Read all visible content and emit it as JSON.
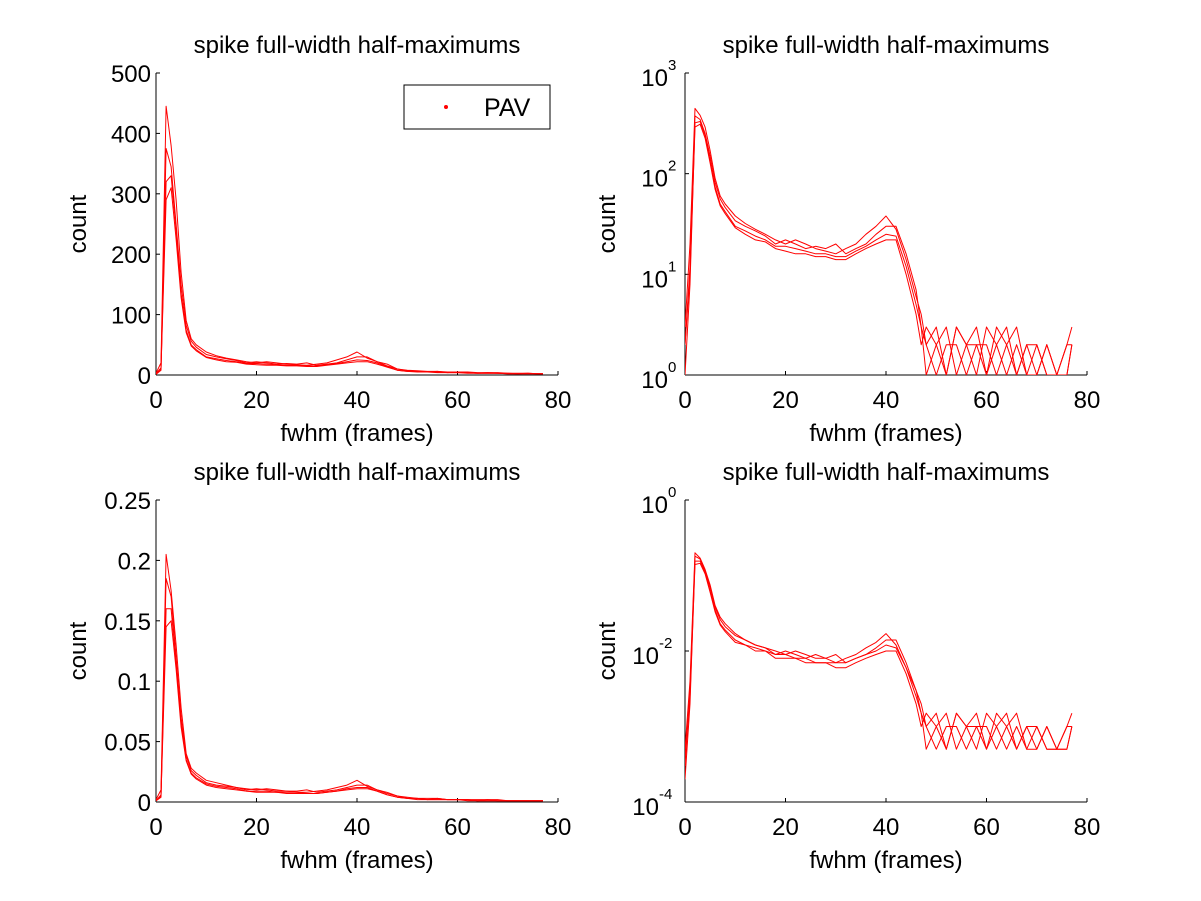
{
  "colors": {
    "series": "#ff0000",
    "axis": "#000000",
    "background": "#ffffff"
  },
  "chart_data": [
    {
      "type": "line",
      "panel": "top-left",
      "title": "spike full-width half-maximums",
      "xlabel": "fwhm (frames)",
      "ylabel": "count",
      "xlim": [
        0,
        80
      ],
      "ylim": [
        0,
        500
      ],
      "yscale": "linear",
      "xticks": [
        0,
        20,
        40,
        60,
        80
      ],
      "xtick_labels": [
        "0",
        "20",
        "40",
        "60",
        "80"
      ],
      "yticks": [
        0,
        100,
        200,
        300,
        400,
        500
      ],
      "ytick_labels": [
        "0",
        "100",
        "200",
        "300",
        "400",
        "500"
      ],
      "grid": false,
      "legend": {
        "entries": [
          "PAV"
        ],
        "placement": "top-right",
        "marker": "dot"
      },
      "x": [
        0,
        1,
        2,
        3,
        4,
        5,
        6,
        7,
        8,
        10,
        12,
        14,
        16,
        18,
        20,
        22,
        24,
        26,
        28,
        30,
        32,
        34,
        36,
        38,
        40,
        42,
        44,
        46,
        48,
        50,
        52,
        54,
        56,
        58,
        60,
        62,
        64,
        66,
        68,
        70,
        72,
        74,
        76,
        77
      ],
      "series": [
        {
          "values": [
            3,
            20,
            445,
            380,
            290,
            170,
            90,
            60,
            50,
            38,
            32,
            28,
            25,
            22,
            20,
            22,
            20,
            18,
            17,
            16,
            18,
            20,
            25,
            30,
            38,
            28,
            22,
            18,
            10,
            8,
            7,
            6,
            6,
            5,
            5,
            5,
            4,
            4,
            4,
            3,
            3,
            3,
            2,
            2
          ]
        },
        {
          "values": [
            2,
            12,
            375,
            345,
            250,
            150,
            82,
            56,
            46,
            34,
            30,
            27,
            24,
            20,
            22,
            20,
            18,
            19,
            18,
            20,
            16,
            18,
            20,
            25,
            30,
            30,
            22,
            15,
            10,
            7,
            6,
            5,
            6,
            4,
            5,
            4,
            3,
            4,
            3,
            3,
            2,
            3,
            2,
            2
          ]
        },
        {
          "values": [
            1,
            8,
            320,
            330,
            240,
            135,
            74,
            50,
            42,
            30,
            27,
            24,
            22,
            19,
            19,
            18,
            17,
            16,
            16,
            15,
            15,
            17,
            19,
            22,
            25,
            24,
            20,
            14,
            8,
            6,
            6,
            5,
            5,
            4,
            4,
            4,
            3,
            3,
            3,
            2,
            2,
            2,
            2,
            2
          ]
        },
        {
          "values": [
            2,
            10,
            290,
            310,
            225,
            128,
            70,
            48,
            40,
            29,
            25,
            22,
            21,
            18,
            17,
            16,
            16,
            15,
            15,
            14,
            14,
            16,
            18,
            20,
            22,
            22,
            18,
            13,
            8,
            6,
            5,
            5,
            4,
            4,
            4,
            3,
            3,
            3,
            3,
            2,
            2,
            2,
            2,
            2
          ]
        }
      ]
    },
    {
      "type": "line",
      "panel": "top-right",
      "title": "spike full-width half-maximums",
      "xlabel": "fwhm (frames)",
      "ylabel": "count",
      "xlim": [
        0,
        80
      ],
      "ylim": [
        1,
        1000
      ],
      "yscale": "log",
      "xticks": [
        0,
        20,
        40,
        60,
        80
      ],
      "xtick_labels": [
        "0",
        "20",
        "40",
        "60",
        "80"
      ],
      "yticks": [
        1,
        10,
        100,
        1000
      ],
      "ytick_labels": [
        {
          "base": "10",
          "exp": "0"
        },
        {
          "base": "10",
          "exp": "1"
        },
        {
          "base": "10",
          "exp": "2"
        },
        {
          "base": "10",
          "exp": "3"
        }
      ],
      "grid": false,
      "x": [
        0,
        1,
        2,
        3,
        4,
        5,
        6,
        7,
        8,
        10,
        12,
        14,
        16,
        18,
        20,
        22,
        24,
        26,
        28,
        30,
        32,
        34,
        36,
        38,
        40,
        42,
        44,
        46,
        47,
        48,
        50,
        52,
        54,
        56,
        58,
        60,
        62,
        64,
        66,
        68,
        70,
        72,
        74,
        76,
        77
      ],
      "series": [
        {
          "values": [
            3,
            20,
            445,
            380,
            290,
            170,
            90,
            60,
            50,
            38,
            32,
            28,
            25,
            22,
            20,
            22,
            20,
            18,
            17,
            16,
            18,
            20,
            25,
            30,
            38,
            28,
            14,
            6,
            4,
            2,
            3,
            1,
            3,
            2,
            1,
            3,
            2,
            1,
            2,
            1,
            2,
            1,
            1,
            2,
            3
          ]
        },
        {
          "values": [
            2,
            12,
            375,
            345,
            250,
            150,
            82,
            56,
            46,
            34,
            30,
            27,
            24,
            20,
            22,
            20,
            18,
            19,
            18,
            20,
            16,
            18,
            20,
            25,
            30,
            30,
            16,
            7,
            3,
            1,
            2,
            3,
            1,
            2,
            3,
            1,
            2,
            3,
            1,
            2,
            1,
            2,
            1,
            2,
            2
          ]
        },
        {
          "values": [
            1,
            8,
            320,
            330,
            240,
            135,
            74,
            50,
            42,
            30,
            27,
            24,
            22,
            19,
            19,
            18,
            17,
            16,
            16,
            15,
            15,
            17,
            19,
            22,
            25,
            24,
            12,
            5,
            3,
            2,
            1,
            2,
            2,
            1,
            2,
            2,
            1,
            2,
            3,
            1,
            1,
            2,
            1,
            1,
            2
          ]
        },
        {
          "values": [
            2,
            10,
            290,
            310,
            225,
            128,
            70,
            48,
            40,
            29,
            25,
            22,
            21,
            18,
            17,
            16,
            16,
            15,
            15,
            14,
            14,
            16,
            18,
            20,
            22,
            22,
            10,
            4,
            2,
            3,
            2,
            1,
            3,
            2,
            2,
            1,
            3,
            2,
            1,
            2,
            2,
            1,
            1,
            1,
            2
          ]
        }
      ]
    },
    {
      "type": "line",
      "panel": "bottom-left",
      "title": "spike full-width half-maximums",
      "xlabel": "fwhm (frames)",
      "ylabel": "count",
      "xlim": [
        0,
        80
      ],
      "ylim": [
        0,
        0.25
      ],
      "yscale": "linear",
      "xticks": [
        0,
        20,
        40,
        60,
        80
      ],
      "xtick_labels": [
        "0",
        "20",
        "40",
        "60",
        "80"
      ],
      "yticks": [
        0,
        0.05,
        0.1,
        0.15,
        0.2,
        0.25
      ],
      "ytick_labels": [
        "0",
        "0.05",
        "0.1",
        "0.15",
        "0.2",
        "0.25"
      ],
      "grid": false,
      "x": [
        0,
        1,
        2,
        3,
        4,
        5,
        6,
        7,
        8,
        10,
        12,
        14,
        16,
        18,
        20,
        22,
        24,
        26,
        28,
        30,
        32,
        34,
        36,
        38,
        40,
        42,
        44,
        46,
        48,
        50,
        52,
        54,
        56,
        58,
        60,
        62,
        64,
        66,
        68,
        70,
        72,
        74,
        76,
        77
      ],
      "series": [
        {
          "values": [
            0.002,
            0.01,
            0.205,
            0.175,
            0.13,
            0.078,
            0.04,
            0.028,
            0.024,
            0.018,
            0.016,
            0.014,
            0.012,
            0.011,
            0.01,
            0.011,
            0.01,
            0.009,
            0.008,
            0.008,
            0.009,
            0.01,
            0.012,
            0.014,
            0.018,
            0.013,
            0.01,
            0.008,
            0.005,
            0.004,
            0.003,
            0.003,
            0.003,
            0.002,
            0.002,
            0.002,
            0.002,
            0.002,
            0.002,
            0.001,
            0.001,
            0.001,
            0.001,
            0.001
          ]
        },
        {
          "values": [
            0.001,
            0.006,
            0.185,
            0.17,
            0.12,
            0.07,
            0.038,
            0.026,
            0.022,
            0.016,
            0.014,
            0.013,
            0.012,
            0.01,
            0.011,
            0.01,
            0.009,
            0.009,
            0.009,
            0.01,
            0.008,
            0.009,
            0.01,
            0.012,
            0.014,
            0.014,
            0.01,
            0.007,
            0.005,
            0.003,
            0.003,
            0.002,
            0.003,
            0.002,
            0.002,
            0.002,
            0.001,
            0.002,
            0.001,
            0.001,
            0.001,
            0.001,
            0.001,
            0.001
          ]
        },
        {
          "values": [
            0.001,
            0.004,
            0.16,
            0.16,
            0.115,
            0.065,
            0.035,
            0.024,
            0.02,
            0.015,
            0.013,
            0.012,
            0.011,
            0.009,
            0.009,
            0.009,
            0.008,
            0.008,
            0.008,
            0.007,
            0.007,
            0.008,
            0.009,
            0.011,
            0.012,
            0.012,
            0.009,
            0.006,
            0.004,
            0.003,
            0.003,
            0.002,
            0.002,
            0.002,
            0.002,
            0.002,
            0.001,
            0.001,
            0.001,
            0.001,
            0.001,
            0.001,
            0.001,
            0.001
          ]
        },
        {
          "values": [
            0.001,
            0.005,
            0.145,
            0.15,
            0.11,
            0.062,
            0.034,
            0.023,
            0.019,
            0.014,
            0.012,
            0.011,
            0.01,
            0.009,
            0.008,
            0.008,
            0.008,
            0.007,
            0.007,
            0.007,
            0.007,
            0.008,
            0.009,
            0.01,
            0.011,
            0.011,
            0.009,
            0.006,
            0.004,
            0.003,
            0.002,
            0.002,
            0.002,
            0.002,
            0.002,
            0.001,
            0.001,
            0.001,
            0.001,
            0.001,
            0.001,
            0.001,
            0.001,
            0.001
          ]
        }
      ]
    },
    {
      "type": "line",
      "panel": "bottom-right",
      "title": "spike full-width half-maximums",
      "xlabel": "fwhm (frames)",
      "ylabel": "count",
      "xlim": [
        0,
        80
      ],
      "ylim": [
        0.0001,
        1
      ],
      "yscale": "log",
      "xticks": [
        0,
        20,
        40,
        60,
        80
      ],
      "xtick_labels": [
        "0",
        "20",
        "40",
        "60",
        "80"
      ],
      "yticks": [
        0.0001,
        0.01,
        1
      ],
      "ytick_labels": [
        {
          "base": "10",
          "exp": "-4"
        },
        {
          "base": "10",
          "exp": "-2"
        },
        {
          "base": "10",
          "exp": "0"
        }
      ],
      "grid": false,
      "x": [
        0,
        1,
        2,
        3,
        4,
        5,
        6,
        7,
        8,
        10,
        12,
        14,
        16,
        18,
        20,
        22,
        24,
        26,
        28,
        30,
        32,
        34,
        36,
        38,
        40,
        42,
        44,
        46,
        47,
        48,
        50,
        52,
        54,
        56,
        58,
        60,
        62,
        64,
        66,
        68,
        70,
        72,
        74,
        76,
        77
      ],
      "series": [
        {
          "values": [
            0.0005,
            0.004,
            0.2,
            0.17,
            0.12,
            0.075,
            0.04,
            0.028,
            0.023,
            0.017,
            0.014,
            0.012,
            0.011,
            0.01,
            0.009,
            0.01,
            0.009,
            0.008,
            0.008,
            0.007,
            0.008,
            0.009,
            0.011,
            0.013,
            0.017,
            0.012,
            0.006,
            0.003,
            0.002,
            0.001,
            0.0015,
            0.0005,
            0.0015,
            0.001,
            0.0005,
            0.0015,
            0.001,
            0.0005,
            0.001,
            0.0005,
            0.001,
            0.0005,
            0.0005,
            0.001,
            0.0015
          ]
        },
        {
          "values": [
            0.0003,
            0.003,
            0.18,
            0.165,
            0.115,
            0.07,
            0.038,
            0.026,
            0.021,
            0.016,
            0.014,
            0.012,
            0.011,
            0.009,
            0.01,
            0.009,
            0.008,
            0.009,
            0.008,
            0.009,
            0.007,
            0.008,
            0.009,
            0.011,
            0.014,
            0.014,
            0.007,
            0.003,
            0.0015,
            0.0005,
            0.001,
            0.0015,
            0.0005,
            0.001,
            0.0015,
            0.0005,
            0.001,
            0.0015,
            0.0005,
            0.001,
            0.0005,
            0.001,
            0.0005,
            0.001,
            0.001
          ]
        },
        {
          "values": [
            0.0002,
            0.002,
            0.155,
            0.155,
            0.11,
            0.063,
            0.035,
            0.023,
            0.019,
            0.014,
            0.012,
            0.011,
            0.01,
            0.009,
            0.009,
            0.008,
            0.008,
            0.007,
            0.007,
            0.007,
            0.007,
            0.008,
            0.009,
            0.01,
            0.012,
            0.011,
            0.006,
            0.0025,
            0.0015,
            0.001,
            0.0005,
            0.001,
            0.001,
            0.0005,
            0.001,
            0.001,
            0.0005,
            0.001,
            0.0015,
            0.0005,
            0.0005,
            0.001,
            0.0005,
            0.0005,
            0.001
          ]
        },
        {
          "values": [
            0.0004,
            0.0025,
            0.14,
            0.145,
            0.105,
            0.06,
            0.033,
            0.022,
            0.018,
            0.013,
            0.012,
            0.01,
            0.01,
            0.008,
            0.008,
            0.008,
            0.007,
            0.007,
            0.007,
            0.006,
            0.006,
            0.007,
            0.008,
            0.009,
            0.01,
            0.01,
            0.005,
            0.002,
            0.001,
            0.0015,
            0.001,
            0.0005,
            0.0015,
            0.001,
            0.001,
            0.0005,
            0.0015,
            0.001,
            0.0005,
            0.001,
            0.001,
            0.0005,
            0.0005,
            0.0005,
            0.001
          ]
        }
      ]
    }
  ]
}
